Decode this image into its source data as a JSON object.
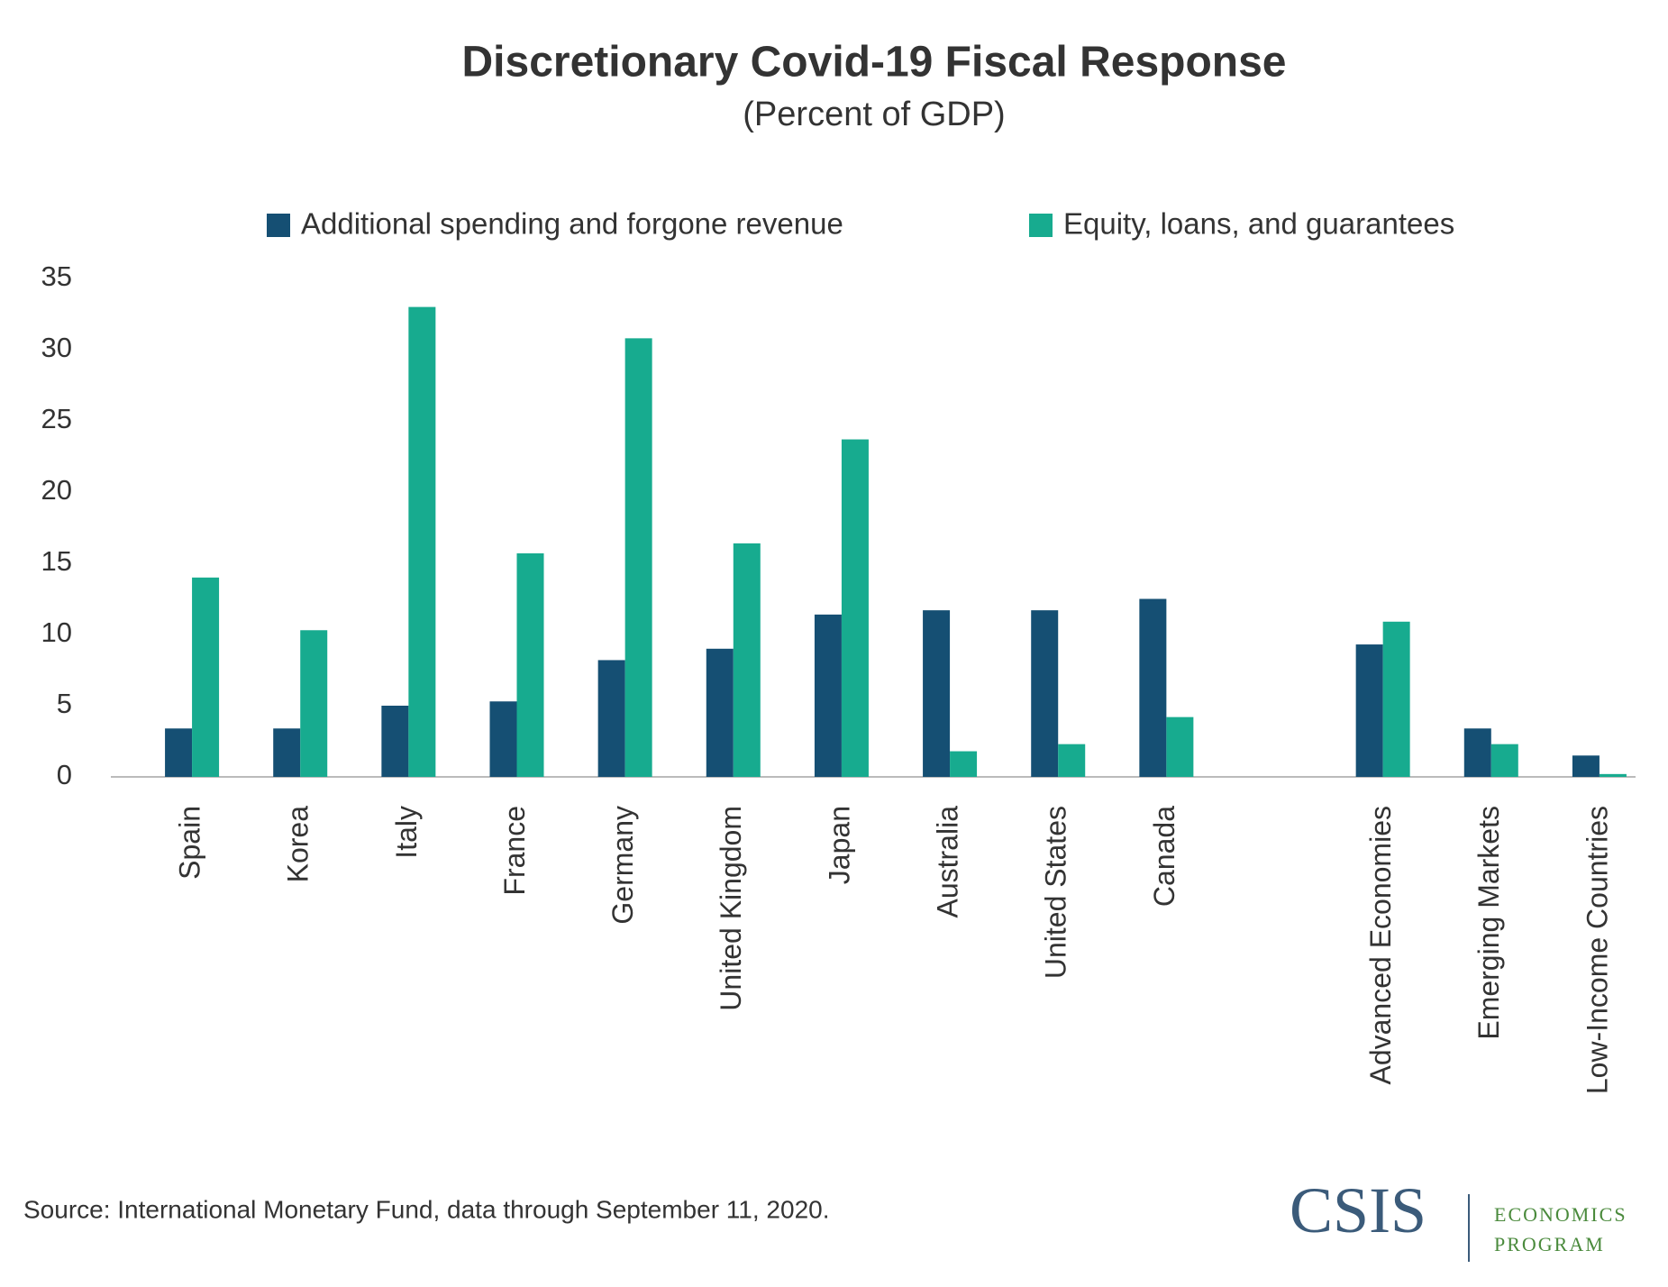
{
  "chart_data": {
    "type": "bar",
    "title": "Discretionary Covid-19 Fiscal Response",
    "subtitle": "(Percent of GDP)",
    "categories": [
      "Spain",
      "Korea",
      "Italy",
      "France",
      "Germany",
      "United Kingdom",
      "Japan",
      "Australia",
      "United States",
      "Canada",
      null,
      "Advanced Economies",
      "Emerging Markets",
      "Low-Income Countries"
    ],
    "series": [
      {
        "name": "Additional spending and forgone revenue",
        "color": "#154f73",
        "values": [
          3.4,
          3.4,
          5.0,
          5.3,
          8.2,
          9.0,
          11.4,
          11.7,
          11.7,
          12.5,
          null,
          9.3,
          3.4,
          1.5
        ]
      },
      {
        "name": "Equity, loans, and guarantees",
        "color": "#17ab8f",
        "values": [
          14.0,
          10.3,
          33.0,
          15.7,
          30.8,
          16.4,
          23.7,
          1.8,
          2.3,
          4.2,
          null,
          10.9,
          2.3,
          0.2
        ]
      }
    ],
    "ylim": [
      0,
      35
    ],
    "yticks": [
      0,
      5,
      10,
      15,
      20,
      25,
      30,
      35
    ],
    "grid": false,
    "legend": "top",
    "source": "Source: International Monetary Fund, data through September 11, 2020.",
    "logo": {
      "name": "CSIS",
      "program": [
        "ECONOMICS",
        "PROGRAM"
      ]
    }
  }
}
